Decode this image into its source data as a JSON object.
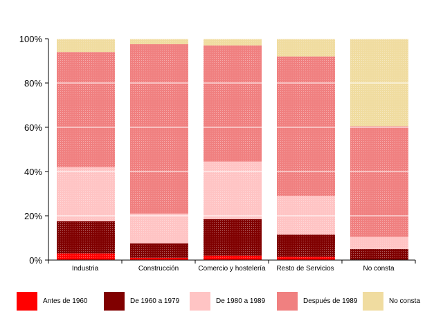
{
  "chart_data": {
    "type": "bar",
    "stacked": true,
    "percent": true,
    "categories": [
      "Industria",
      "Construcción",
      "Comercio y hostelería",
      "Resto de Servicios",
      "No consta"
    ],
    "series": [
      {
        "name": "Antes de 1960",
        "color": "#ff0000",
        "values": [
          3,
          1,
          2,
          1.5,
          0
        ]
      },
      {
        "name": "De 1960 a 1979",
        "color": "#800000",
        "values": [
          14.5,
          6.5,
          16.5,
          10,
          5
        ]
      },
      {
        "name": "De 1980 a 1989",
        "color": "#ffc4c4",
        "values": [
          24.5,
          13.5,
          26,
          17.5,
          5.5
        ]
      },
      {
        "name": "Después de 1989",
        "color": "#f08080",
        "values": [
          52,
          76.5,
          52.5,
          63,
          50
        ]
      },
      {
        "name": "No consta",
        "color": "#f0dca0",
        "values": [
          6,
          2.5,
          3,
          8,
          39.5
        ]
      }
    ],
    "y_ticks": [
      "0%",
      "20%",
      "40%",
      "60%",
      "80%",
      "100%"
    ],
    "ylim": [
      0,
      100
    ],
    "grid": true,
    "legend_position": "bottom"
  }
}
